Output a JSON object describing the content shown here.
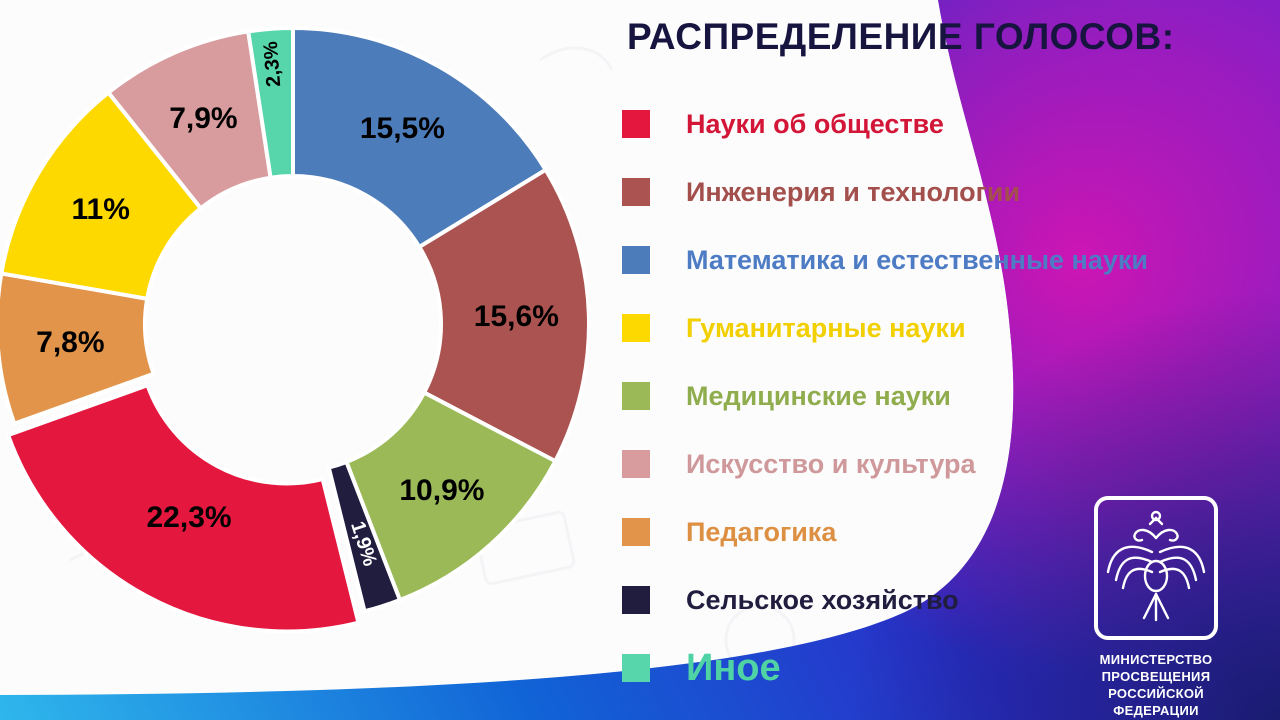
{
  "title": "РАСПРЕДЕЛЕНИЕ ГОЛОСОВ:",
  "chart_data": {
    "type": "pie",
    "subtype": "donut",
    "title": "Распределение голосов:",
    "direction": "clockwise",
    "start_angle_deg": 0,
    "inner_radius_ratio": 0.5,
    "slices": [
      {
        "name": "Математика и естественные науки",
        "value": 15.5,
        "display": "15,5%",
        "color": "#4d7cba"
      },
      {
        "name": "Инженерия и технологии",
        "value": 15.6,
        "display": "15,6%",
        "color": "#ab5350"
      },
      {
        "name": "Медицинские науки",
        "value": 10.9,
        "display": "10,9%",
        "color": "#9bb957"
      },
      {
        "name": "Сельское хозяйство",
        "value": 1.9,
        "display": "1,9%",
        "color": "#211d3f",
        "label_color": "#ffffff",
        "small": true,
        "radial": true,
        "label_radius": 0.78
      },
      {
        "name": "Науки об обществе",
        "value": 22.3,
        "display": "22,3%",
        "color": "#e4173e",
        "explode": 13,
        "label_radius": 0.7
      },
      {
        "name": "Педагогика",
        "value": 7.8,
        "display": "7,8%",
        "color": "#e2954a"
      },
      {
        "name": "Гуманитарные науки",
        "value": 11,
        "display": "11%",
        "color": "#fed900"
      },
      {
        "name": "Искусство и культура",
        "value": 7.9,
        "display": "7,9%",
        "color": "#d89c9e"
      },
      {
        "name": "Иное",
        "value": 2.3,
        "display": "2,3%",
        "color": "#57d6ab",
        "small": true,
        "radial": true,
        "label_radius": 0.88
      }
    ]
  },
  "legend": {
    "items": [
      {
        "label": "Науки об обществе",
        "color": "#e4173e",
        "text_color": "#d31638"
      },
      {
        "label": "Инженерия и технологии",
        "color": "#ab5350",
        "text_color": "#a34f4c"
      },
      {
        "label": "Математика и естественные науки",
        "color": "#4d7cba",
        "text_color": "#4d7cc4"
      },
      {
        "label": "Гуманитарные науки",
        "color": "#fed900",
        "text_color": "#f2d000"
      },
      {
        "label": "Медицинские науки",
        "color": "#9bb957",
        "text_color": "#90ad4d"
      },
      {
        "label": "Искусство и культура",
        "color": "#d89c9e",
        "text_color": "#cf989b"
      },
      {
        "label": "Педагогика",
        "color": "#e2954a",
        "text_color": "#dd8f42"
      },
      {
        "label": "Сельское хозяйство",
        "color": "#211d3f",
        "text_color": "#211d3f"
      },
      {
        "label": "Иное",
        "color": "#57d6ab",
        "text_color": "#4fd3a4",
        "size": 38
      }
    ]
  },
  "logo": {
    "lines": [
      "МИНИСТЕРСТВО",
      "ПРОСВЕЩЕНИЯ",
      "РОССИЙСКОЙ ФЕДЕРАЦИИ"
    ]
  },
  "colors": {
    "title": "#171440",
    "bg_cyan": "#2fb7ec",
    "bg_blue": "#1163d6",
    "bg_indigo": "#2b2cc8",
    "bg_violet": "#6e22cc",
    "bg_magenta": "#d414b2",
    "bg_dark": "#141a66"
  }
}
